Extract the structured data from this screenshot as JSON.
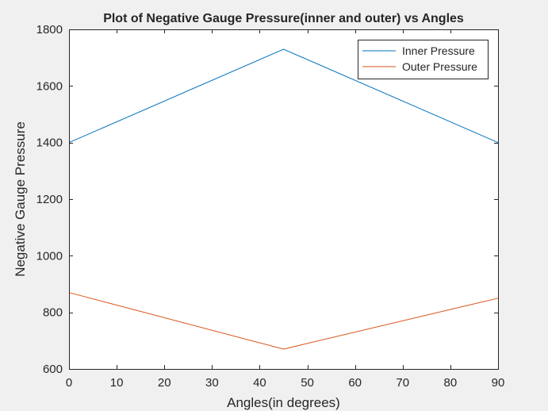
{
  "chart_data": {
    "type": "line",
    "title": "Plot of Negative Gauge Pressure(inner and outer) vs Angles",
    "xlabel": "Angles(in degrees)",
    "ylabel": "Negative Gauge Pressure",
    "xlim": [
      0,
      90
    ],
    "ylim": [
      600,
      1800
    ],
    "xticks": [
      0,
      10,
      20,
      30,
      40,
      50,
      60,
      70,
      80,
      90
    ],
    "yticks": [
      600,
      800,
      1000,
      1200,
      1400,
      1600,
      1800
    ],
    "grid": false,
    "legend_position": "top-right",
    "x": [
      0,
      45,
      90
    ],
    "series": [
      {
        "name": "Inner Pressure",
        "values": [
          1400,
          1730,
          1400
        ],
        "color": "#0072bd"
      },
      {
        "name": "Outer Pressure",
        "values": [
          870,
          670,
          850
        ],
        "color": "#d95319"
      }
    ]
  }
}
